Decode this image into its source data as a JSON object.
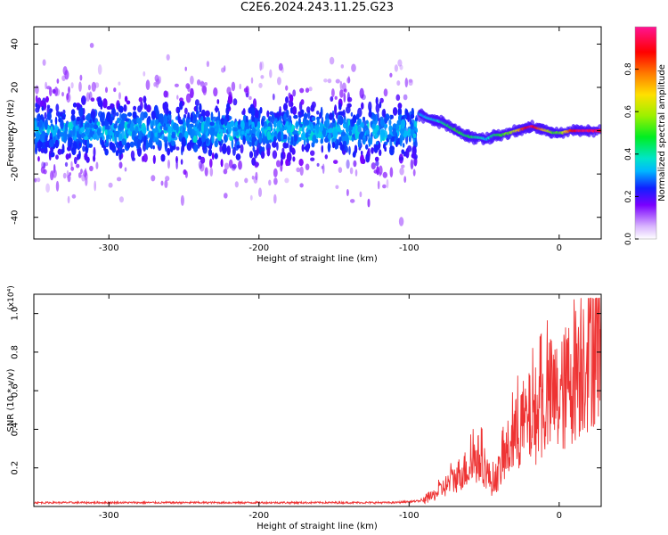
{
  "title": "C2E6.2024.243.11.25.G23",
  "chart_data": [
    {
      "type": "heatmap",
      "name": "spectrogram",
      "xlabel": "Height of straight line (km)",
      "ylabel": "Frequency (Hz)",
      "xlim": [
        -350,
        28
      ],
      "ylim": [
        -50,
        48
      ],
      "x_ticks": [
        -300,
        -200,
        -100,
        0
      ],
      "y_ticks": [
        -40,
        -20,
        0,
        20,
        40
      ],
      "colorbar": {
        "label": "Normalized spectral amplitude",
        "range": [
          0,
          1
        ],
        "ticks": [
          "0.0",
          "0.2",
          "0.4",
          "0.6",
          "0.8"
        ],
        "tick_values": [
          0.0,
          0.2,
          0.4,
          0.6,
          0.8
        ]
      },
      "noise_region_x": [
        -350,
        -95
      ],
      "signal_track": {
        "x": [
          -93,
          -88,
          -83,
          -78,
          -73,
          -68,
          -63,
          -58,
          -53,
          -48,
          -43,
          -38,
          -33,
          -28,
          -23,
          -18,
          -13,
          -8,
          -3,
          2,
          8,
          14,
          20,
          28
        ],
        "freq": [
          8,
          6,
          5,
          4,
          2,
          0,
          -2,
          -3,
          -3,
          -4,
          -2,
          -2,
          -1,
          0,
          1,
          2,
          1,
          0,
          -1,
          -1,
          0,
          0,
          0,
          0
        ],
        "amplitude": [
          0.3,
          0.35,
          0.35,
          0.4,
          0.45,
          0.5,
          0.45,
          0.45,
          0.4,
          0.35,
          0.45,
          0.5,
          0.55,
          0.65,
          0.85,
          0.95,
          0.8,
          0.65,
          0.5,
          0.55,
          0.85,
          0.95,
          0.95,
          0.95
        ]
      }
    },
    {
      "type": "line",
      "name": "snr",
      "xlabel": "Height of straight line (km)",
      "ylabel": "SNR (10 * v/v)",
      "y_multiplier": "(x10⁴)",
      "xlim": [
        -350,
        28
      ],
      "ylim": [
        0,
        1.1
      ],
      "x_ticks": [
        -300,
        -200,
        -100,
        0
      ],
      "y_ticks": [
        0.2,
        0.4,
        0.6,
        0.8,
        1.0
      ],
      "color": "#ee3333",
      "x": [
        -350,
        -300,
        -250,
        -200,
        -150,
        -110,
        -90,
        -85,
        -80,
        -75,
        -70,
        -65,
        -60,
        -55,
        -50,
        -45,
        -40,
        -35,
        -30,
        -25,
        -20,
        -15,
        -10,
        -5,
        0,
        5,
        10,
        15,
        20,
        28
      ],
      "y": [
        0.02,
        0.02,
        0.02,
        0.02,
        0.02,
        0.02,
        0.03,
        0.05,
        0.08,
        0.11,
        0.14,
        0.18,
        0.2,
        0.25,
        0.22,
        0.12,
        0.18,
        0.28,
        0.35,
        0.42,
        0.45,
        0.48,
        0.52,
        0.58,
        0.55,
        0.62,
        0.72,
        0.78,
        0.85,
        0.95
      ]
    }
  ]
}
